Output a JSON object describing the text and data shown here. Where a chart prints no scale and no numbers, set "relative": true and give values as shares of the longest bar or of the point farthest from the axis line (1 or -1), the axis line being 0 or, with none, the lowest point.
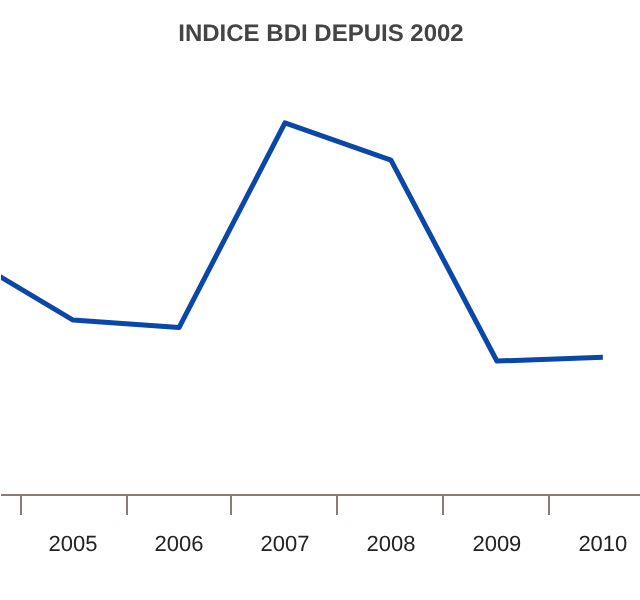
{
  "chart_data": {
    "type": "line",
    "title": "INDICE BDI DEPUIS 2002",
    "relative": true,
    "categories": [
      null,
      "2005",
      "2006",
      "2007",
      "2008",
      "2009",
      "2010",
      null
    ],
    "series": [
      {
        "color": "#0a47a8",
        "values": [
          0.64,
          0.47,
          0.45,
          1,
          0.9,
          0.36,
          0.37,
          null
        ]
      }
    ],
    "line_style": "solid",
    "marker": "none"
  }
}
